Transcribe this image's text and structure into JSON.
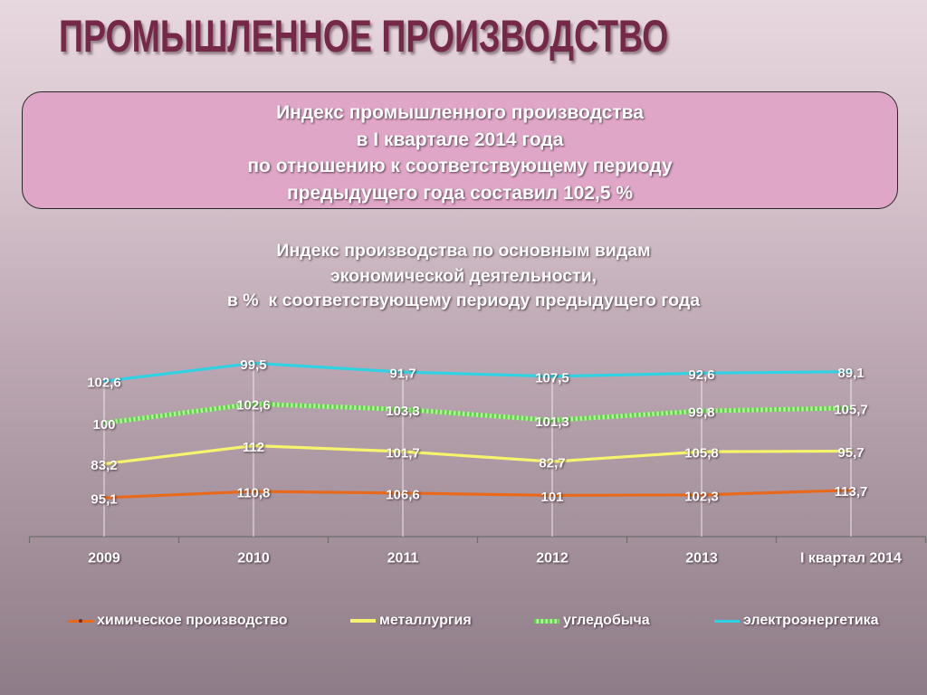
{
  "slide": {
    "title": "ПРОМЫШЛЕННОЕ ПРОИЗВОДСТВО",
    "summary_lines": [
      "Индекс промышленного производства",
      "в I квартале 2014 года",
      "по отношению к соответствующему периоду",
      "предыдущего года составил 102,5 %"
    ],
    "colors": {
      "title": "#762848",
      "summary_box": "#e0a6c8"
    }
  },
  "chart_data": {
    "type": "line",
    "stacked": true,
    "title_lines": [
      "Индекс производства по основным видам",
      "экономической деятельности,",
      "в %  к соответствующему периоду предыдущего года"
    ],
    "xlabel": "",
    "ylabel": "",
    "categories": [
      "2009",
      "2010",
      "2011",
      "2012",
      "2013",
      "I квартал 2014"
    ],
    "series": [
      {
        "name": "химическое производство",
        "values": [
          95.1,
          110.8,
          106.6,
          101,
          102.3,
          113.7
        ],
        "color": "#e8691c"
      },
      {
        "name": "металлургия",
        "values": [
          83.2,
          112,
          101.7,
          82.7,
          105.8,
          95.7
        ],
        "color": "#f6f36c"
      },
      {
        "name": "угледобыча",
        "values": [
          100,
          102.6,
          103.3,
          101.3,
          99.8,
          105.7
        ],
        "color": "#5fcf47"
      },
      {
        "name": "электроэнергетика",
        "values": [
          102.6,
          99.5,
          91.7,
          107.5,
          92.6,
          89.1
        ],
        "color": "#2fd2e2"
      }
    ],
    "ylim": [
      0,
      450
    ],
    "grid": false,
    "legend_position": "bottom"
  }
}
